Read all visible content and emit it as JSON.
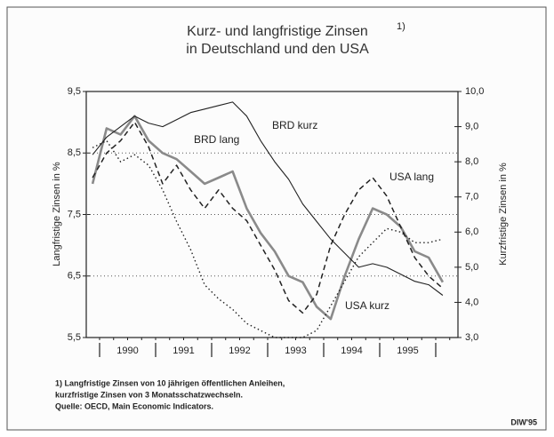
{
  "chart_data": {
    "type": "line",
    "title": [
      "Kurz- und langfristige Zinsen",
      "in Deutschland und den USA"
    ],
    "title_note": "1)",
    "ylabel": "Langfristige Zinsen in %",
    "y2label": "Kurzfristige Zinsen in %",
    "categories": [
      null,
      null,
      "1990",
      null,
      null,
      null,
      "1991",
      null,
      null,
      null,
      "1992",
      null,
      null,
      null,
      "1993",
      null,
      null,
      null,
      "1994",
      null,
      null,
      null,
      "1995",
      null,
      null,
      null
    ],
    "ylim": [
      5.5,
      9.5
    ],
    "yticks": [
      {
        "value": 5.5,
        "label": "5,5"
      },
      {
        "value": 6.5,
        "label": "6,5"
      },
      {
        "value": 7.5,
        "label": "7,5"
      },
      {
        "value": 8.5,
        "label": "8,5"
      },
      {
        "value": 9.5,
        "label": "9,5"
      }
    ],
    "y2lim": [
      3.0,
      10.0
    ],
    "y2ticks": [
      {
        "value": 3.0,
        "label": "3,0"
      },
      {
        "value": 4.0,
        "label": "4,0"
      },
      {
        "value": 5.0,
        "label": "5,0"
      },
      {
        "value": 6.0,
        "label": "6,0"
      },
      {
        "value": 7.0,
        "label": "7,0"
      },
      {
        "value": 8.0,
        "label": "8,0"
      },
      {
        "value": 9.0,
        "label": "9,0"
      },
      {
        "value": 10.0,
        "label": "10,0"
      }
    ],
    "grid": true,
    "series": [
      {
        "name": "BRD lang",
        "color": "#8a8a8a",
        "dash": "solid",
        "width": 2.6,
        "axis": "y",
        "values": [
          8.0,
          8.9,
          8.8,
          9.1,
          8.7,
          8.5,
          8.4,
          8.2,
          8.0,
          8.1,
          8.2,
          7.6,
          7.2,
          6.9,
          6.5,
          6.4,
          6.0,
          5.8,
          6.5,
          7.1,
          7.6,
          7.5,
          7.3,
          6.9,
          6.8,
          6.4
        ]
      },
      {
        "name": "USA lang",
        "color": "#222222",
        "dash": "dashed",
        "width": 1.5,
        "axis": "y",
        "values": [
          8.1,
          8.5,
          8.7,
          9.0,
          8.6,
          8.0,
          8.3,
          7.9,
          7.6,
          7.9,
          7.6,
          7.4,
          7.0,
          6.6,
          6.1,
          5.9,
          6.2,
          7.0,
          7.5,
          7.9,
          8.1,
          7.8,
          7.3,
          6.8,
          6.5,
          6.3
        ]
      },
      {
        "name": "BRD kurz",
        "color": "#222222",
        "dash": "solid",
        "width": 1.1,
        "axis": "y2",
        "values": [
          8.2,
          8.7,
          9.0,
          9.3,
          9.1,
          9.0,
          9.2,
          9.4,
          9.5,
          9.6,
          9.7,
          9.3,
          8.6,
          8.0,
          7.5,
          6.8,
          6.3,
          5.8,
          5.4,
          5.0,
          5.1,
          5.0,
          4.8,
          4.6,
          4.5,
          4.2
        ]
      },
      {
        "name": "USA kurz",
        "color": "#222222",
        "dash": "dotted",
        "width": 1.4,
        "axis": "y2",
        "values": [
          8.4,
          8.6,
          8.0,
          8.2,
          7.9,
          7.2,
          6.3,
          5.5,
          4.5,
          4.1,
          3.8,
          3.4,
          3.2,
          3.0,
          3.0,
          3.0,
          3.2,
          3.9,
          4.6,
          5.3,
          5.7,
          6.1,
          6.0,
          5.7,
          5.7,
          5.8
        ]
      }
    ],
    "notes": [
      "1) Langfristige Zinsen von 10 jährigen öffentlichen Anleihen,",
      "kurzfristige Zinsen von 3 Monatsschatzwechseln.",
      "Quelle: OECD, Main Economic Indicators."
    ],
    "source": "DIW'95"
  }
}
